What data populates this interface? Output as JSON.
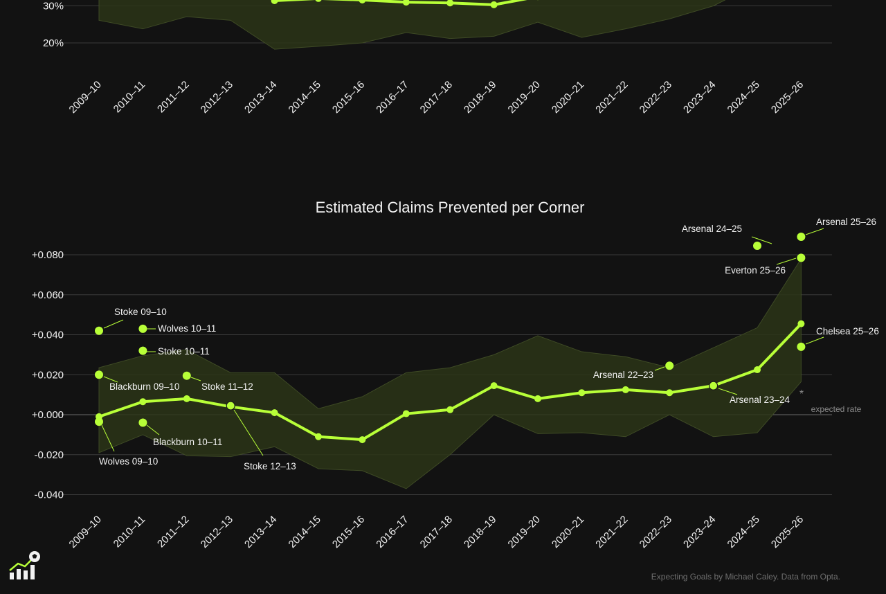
{
  "colors": {
    "background": "#121212",
    "line": "#b8ff38",
    "band_fill": "#2b3517",
    "band_stroke": "#3e4a25",
    "grid": "#3a3a3a",
    "zero_line": "#6a6a6a",
    "text": "#f2f2f2",
    "muted": "#8a8a8a"
  },
  "credit": "Expecting Goals by Michael Caley. Data from Opta.",
  "logo_icon": "expecting-goals-logo-icon",
  "chart_data": [
    {
      "type": "line",
      "title": "",
      "note": "Top chart is cropped; only its lower portion is visible",
      "categories": [
        "2009–10",
        "2010–11",
        "2011–12",
        "2012–13",
        "2013–14",
        "2014–15",
        "2015–16",
        "2016–17",
        "2017–18",
        "2018–19",
        "2019–20",
        "2020–21",
        "2021–22",
        "2022–23",
        "2023–24",
        "2024–25",
        "2025–26"
      ],
      "yticks": [
        20,
        30
      ],
      "ytick_labels": [
        "20%",
        "30%"
      ],
      "ylim": [
        18,
        31.5
      ],
      "series": [
        {
          "name": "average",
          "values": [
            null,
            null,
            null,
            null,
            31.4,
            32.0,
            31.6,
            31.0,
            30.8,
            30.3,
            32.5,
            null,
            null,
            null,
            null,
            null,
            null
          ]
        }
      ],
      "band": {
        "low": [
          26.1,
          23.8,
          27.1,
          26.1,
          18.3,
          19.1,
          20.0,
          22.8,
          21.2,
          21.8,
          25.6,
          21.5,
          23.8,
          26.5,
          30.0,
          36.0,
          null
        ],
        "high": [
          40,
          40,
          40,
          40,
          40,
          40,
          40,
          40,
          40,
          40,
          40,
          40,
          40,
          40,
          40,
          40,
          null
        ]
      }
    },
    {
      "type": "line",
      "title": "Estimated Claims Prevented per Corner",
      "categories": [
        "2009–10",
        "2010–11",
        "2011–12",
        "2012–13",
        "2013–14",
        "2014–15",
        "2015–16",
        "2016–17",
        "2017–18",
        "2018–19",
        "2019–20",
        "2020–21",
        "2021–22",
        "2022–23",
        "2023–24",
        "2024–25",
        "2025–26"
      ],
      "yticks": [
        -0.04,
        -0.02,
        0.0,
        0.02,
        0.04,
        0.06,
        0.08
      ],
      "ytick_labels": [
        "-0.040",
        "-0.020",
        "+0.000",
        "+0.020",
        "+0.040",
        "+0.060",
        "+0.080"
      ],
      "ylim": [
        -0.04,
        0.08
      ],
      "reference_line": {
        "value": 0.0,
        "label": "expected rate",
        "marker": "*"
      },
      "series": [
        {
          "name": "league average",
          "values": [
            -0.001,
            0.0065,
            0.008,
            0.004,
            0.001,
            -0.011,
            -0.0125,
            0.0005,
            0.0025,
            0.0145,
            0.008,
            0.011,
            0.0125,
            0.011,
            0.0145,
            0.0225,
            0.0455
          ]
        }
      ],
      "band": {
        "low": [
          -0.019,
          -0.01,
          -0.0205,
          -0.021,
          -0.016,
          -0.027,
          -0.028,
          -0.037,
          -0.02,
          0.0,
          -0.0095,
          -0.009,
          -0.011,
          0.0,
          -0.011,
          -0.009,
          0.0165
        ],
        "high": [
          0.0235,
          0.0295,
          0.0325,
          0.021,
          0.021,
          0.003,
          0.009,
          0.021,
          0.0235,
          0.03,
          0.0395,
          0.0315,
          0.029,
          0.0235,
          0.0335,
          0.0435,
          0.078
        ]
      },
      "team_points": [
        {
          "label": "Stoke 09–10",
          "x_index": 0,
          "value": 0.042
        },
        {
          "label": "Blackburn 09–10",
          "x_index": 0,
          "value": 0.02
        },
        {
          "label": "Wolves 09–10",
          "x_index": 0,
          "value": -0.0035
        },
        {
          "label": "Wolves 10–11",
          "x_index": 1,
          "value": 0.043
        },
        {
          "label": "Stoke 10–11",
          "x_index": 1,
          "value": 0.032
        },
        {
          "label": "Blackburn 10–11",
          "x_index": 1,
          "value": -0.004
        },
        {
          "label": "Stoke 11–12",
          "x_index": 2,
          "value": 0.0195
        },
        {
          "label": "Stoke 12–13",
          "x_index": 3,
          "value": 0.0045
        },
        {
          "label": "Arsenal 22–23",
          "x_index": 13,
          "value": 0.0245
        },
        {
          "label": "Arsenal 23–24",
          "x_index": 14,
          "value": 0.0145
        },
        {
          "label": "Arsenal 24–25",
          "x_index": 15,
          "value": 0.0845
        },
        {
          "label": "Arsenal 25–26",
          "x_index": 16,
          "value": 0.089
        },
        {
          "label": "Everton 25–26",
          "x_index": 16,
          "value": 0.0785
        },
        {
          "label": "Chelsea 25–26",
          "x_index": 16,
          "value": 0.034
        }
      ]
    }
  ]
}
